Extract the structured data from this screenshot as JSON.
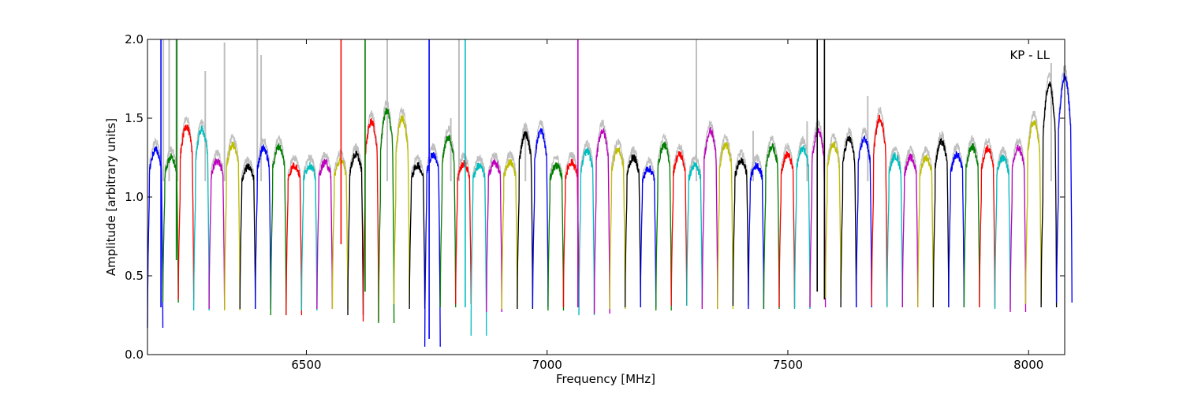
{
  "chart_data": {
    "type": "line",
    "title": "",
    "xlabel": "Frequency [MHz]",
    "ylabel": "Amplitude [arbitrary units]",
    "annotation": "KP - LL",
    "xlim": [
      6170,
      8075
    ],
    "ylim": [
      0.0,
      2.0
    ],
    "grid": false,
    "x_ticks": [
      6500,
      7000,
      7500,
      8000
    ],
    "x_tick_labels": [
      "6500",
      "7000",
      "7500",
      "8000"
    ],
    "y_ticks": [
      0.0,
      0.5,
      1.0,
      1.5,
      2.0
    ],
    "y_tick_labels": [
      "0.0",
      "0.5",
      "1.0",
      "1.5",
      "2.0"
    ],
    "background_series": {
      "color": "#bfbfbf",
      "description_peaks": [
        {
          "x": 6203,
          "y": 2.0
        },
        {
          "x": 6215,
          "y": 2.0
        },
        {
          "x": 6232,
          "y": 2.0
        },
        {
          "x": 6290,
          "y": 1.8
        },
        {
          "x": 6330,
          "y": 1.98
        },
        {
          "x": 6398,
          "y": 2.0
        },
        {
          "x": 6406,
          "y": 1.9
        },
        {
          "x": 6668,
          "y": 2.0
        },
        {
          "x": 6800,
          "y": 1.5
        },
        {
          "x": 6817,
          "y": 2.0
        },
        {
          "x": 6955,
          "y": 1.45
        },
        {
          "x": 7310,
          "y": 2.0
        },
        {
          "x": 7428,
          "y": 1.42
        },
        {
          "x": 7540,
          "y": 1.48
        },
        {
          "x": 7666,
          "y": 1.64
        },
        {
          "x": 8047,
          "y": 1.85
        }
      ]
    },
    "colors_cycle": [
      "#0000ff",
      "#008000",
      "#ff0000",
      "#00bfbf",
      "#bf00bf",
      "#bfbf00",
      "#000000"
    ],
    "band_width_mhz": 32,
    "bands": [
      {
        "start": 6170,
        "peak": 1.3,
        "min": 0.17,
        "color": "#0000ff"
      },
      {
        "start": 6202,
        "peak": 1.25,
        "min": 0.33,
        "color": "#008000"
      },
      {
        "start": 6234,
        "peak": 1.45,
        "min": 0.35,
        "color": "#ff0000"
      },
      {
        "start": 6266,
        "peak": 1.43,
        "min": 0.28,
        "color": "#00bfbf"
      },
      {
        "start": 6298,
        "peak": 1.23,
        "min": 0.29,
        "color": "#bf00bf"
      },
      {
        "start": 6330,
        "peak": 1.33,
        "min": 0.28,
        "color": "#bfbf00"
      },
      {
        "start": 6362,
        "peak": 1.19,
        "min": 0.29,
        "color": "#000000"
      },
      {
        "start": 6394,
        "peak": 1.31,
        "min": 0.29,
        "color": "#0000ff"
      },
      {
        "start": 6426,
        "peak": 1.32,
        "min": 0.25,
        "color": "#008000"
      },
      {
        "start": 6458,
        "peak": 1.2,
        "min": 0.25,
        "color": "#ff0000"
      },
      {
        "start": 6490,
        "peak": 1.2,
        "min": 0.28,
        "color": "#00bfbf"
      },
      {
        "start": 6522,
        "peak": 1.22,
        "min": 0.29,
        "color": "#bf00bf"
      },
      {
        "start": 6554,
        "peak": 1.23,
        "min": 0.29,
        "color": "#bfbf00"
      },
      {
        "start": 6586,
        "peak": 1.27,
        "min": 0.25,
        "color": "#000000"
      },
      {
        "start": 6618,
        "peak": 1.48,
        "min": 0.21,
        "color": "#ff0000"
      },
      {
        "start": 6650,
        "peak": 1.55,
        "min": 0.2,
        "color": "#008000"
      },
      {
        "start": 6682,
        "peak": 1.5,
        "min": 0.32,
        "color": "#bfbf00"
      },
      {
        "start": 6714,
        "peak": 1.2,
        "min": 0.29,
        "color": "#000000"
      },
      {
        "start": 6746,
        "peak": 1.27,
        "min": 0.05,
        "color": "#0000ff"
      },
      {
        "start": 6778,
        "peak": 1.38,
        "min": 0.3,
        "color": "#008000"
      },
      {
        "start": 6810,
        "peak": 1.21,
        "min": 0.32,
        "color": "#ff0000"
      },
      {
        "start": 6842,
        "peak": 1.2,
        "min": 0.12,
        "color": "#00bfbf"
      },
      {
        "start": 6874,
        "peak": 1.22,
        "min": 0.27,
        "color": "#bf00bf"
      },
      {
        "start": 6906,
        "peak": 1.22,
        "min": 0.29,
        "color": "#bfbf00"
      },
      {
        "start": 6938,
        "peak": 1.4,
        "min": 0.29,
        "color": "#000000"
      },
      {
        "start": 6970,
        "peak": 1.42,
        "min": 0.3,
        "color": "#0000ff"
      },
      {
        "start": 7002,
        "peak": 1.2,
        "min": 0.28,
        "color": "#008000"
      },
      {
        "start": 7034,
        "peak": 1.22,
        "min": 0.3,
        "color": "#ff0000"
      },
      {
        "start": 7066,
        "peak": 1.29,
        "min": 0.25,
        "color": "#00bfbf"
      },
      {
        "start": 7098,
        "peak": 1.42,
        "min": 0.26,
        "color": "#bf00bf"
      },
      {
        "start": 7130,
        "peak": 1.3,
        "min": 0.29,
        "color": "#bfbf00"
      },
      {
        "start": 7162,
        "peak": 1.25,
        "min": 0.3,
        "color": "#000000"
      },
      {
        "start": 7194,
        "peak": 1.18,
        "min": 0.3,
        "color": "#0000ff"
      },
      {
        "start": 7226,
        "peak": 1.33,
        "min": 0.28,
        "color": "#008000"
      },
      {
        "start": 7258,
        "peak": 1.27,
        "min": 0.31,
        "color": "#ff0000"
      },
      {
        "start": 7290,
        "peak": 1.2,
        "min": 0.31,
        "color": "#00bfbf"
      },
      {
        "start": 7322,
        "peak": 1.42,
        "min": 0.29,
        "color": "#bf00bf"
      },
      {
        "start": 7354,
        "peak": 1.33,
        "min": 0.29,
        "color": "#bfbf00"
      },
      {
        "start": 7386,
        "peak": 1.23,
        "min": 0.31,
        "color": "#000000"
      },
      {
        "start": 7418,
        "peak": 1.2,
        "min": 0.29,
        "color": "#0000ff"
      },
      {
        "start": 7450,
        "peak": 1.32,
        "min": 0.29,
        "color": "#008000"
      },
      {
        "start": 7482,
        "peak": 1.27,
        "min": 0.3,
        "color": "#ff0000"
      },
      {
        "start": 7514,
        "peak": 1.31,
        "min": 0.29,
        "color": "#00bfbf"
      },
      {
        "start": 7546,
        "peak": 1.42,
        "min": 0.3,
        "color": "#bf00bf"
      },
      {
        "start": 7578,
        "peak": 1.33,
        "min": 0.36,
        "color": "#bfbf00"
      },
      {
        "start": 7610,
        "peak": 1.37,
        "min": 0.3,
        "color": "#000000"
      },
      {
        "start": 7642,
        "peak": 1.37,
        "min": 0.3,
        "color": "#0000ff"
      },
      {
        "start": 7674,
        "peak": 1.5,
        "min": 0.31,
        "color": "#ff0000"
      },
      {
        "start": 7706,
        "peak": 1.26,
        "min": 0.3,
        "color": "#00bfbf"
      },
      {
        "start": 7738,
        "peak": 1.25,
        "min": 0.3,
        "color": "#bf00bf"
      },
      {
        "start": 7770,
        "peak": 1.25,
        "min": 0.3,
        "color": "#bfbf00"
      },
      {
        "start": 7802,
        "peak": 1.35,
        "min": 0.3,
        "color": "#000000"
      },
      {
        "start": 7834,
        "peak": 1.27,
        "min": 0.3,
        "color": "#0000ff"
      },
      {
        "start": 7866,
        "peak": 1.32,
        "min": 0.3,
        "color": "#008000"
      },
      {
        "start": 7898,
        "peak": 1.31,
        "min": 0.3,
        "color": "#ff0000"
      },
      {
        "start": 7930,
        "peak": 1.25,
        "min": 0.29,
        "color": "#00bfbf"
      },
      {
        "start": 7962,
        "peak": 1.31,
        "min": 0.27,
        "color": "#bf00bf"
      },
      {
        "start": 7994,
        "peak": 1.48,
        "min": 0.32,
        "color": "#bfbf00"
      },
      {
        "start": 8026,
        "peak": 1.72,
        "min": 0.3,
        "color": "#000000"
      },
      {
        "start": 8058,
        "peak": 1.77,
        "min": 0.33,
        "color": "#0000ff"
      }
    ],
    "spikes": [
      {
        "x": 6198,
        "y_from": 0.3,
        "y_to": 2.0,
        "color": "#0000ff"
      },
      {
        "x": 6230,
        "y_from": 0.6,
        "y_to": 2.0,
        "color": "#008000"
      },
      {
        "x": 6572,
        "y_from": 0.7,
        "y_to": 2.0,
        "color": "#ff0000"
      },
      {
        "x": 6622,
        "y_from": 0.4,
        "y_to": 2.0,
        "color": "#008000"
      },
      {
        "x": 6755,
        "y_from": 0.1,
        "y_to": 2.0,
        "color": "#0000ff"
      },
      {
        "x": 6830,
        "y_from": 0.3,
        "y_to": 2.0,
        "color": "#00bfbf"
      },
      {
        "x": 7064,
        "y_from": 0.3,
        "y_to": 2.0,
        "color": "#bf00bf"
      },
      {
        "x": 7561,
        "y_from": 0.4,
        "y_to": 2.0,
        "color": "#000000"
      },
      {
        "x": 7576,
        "y_from": 0.35,
        "y_to": 2.0,
        "color": "#000000"
      }
    ]
  }
}
